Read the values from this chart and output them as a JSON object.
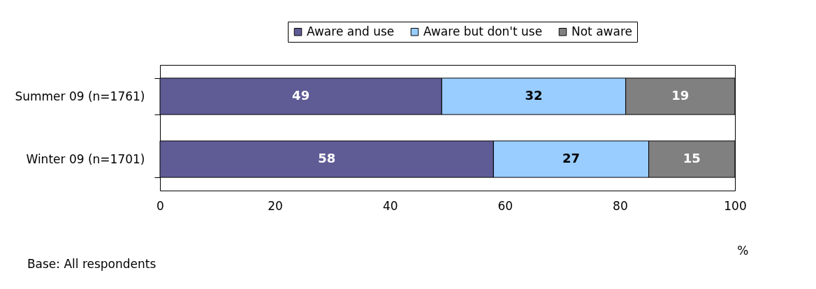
{
  "chart_data": {
    "type": "bar",
    "orientation": "horizontal",
    "stacked": true,
    "categories": [
      "Summer 09 (n=1761)",
      "Winter 09 (n=1701)"
    ],
    "series": [
      {
        "name": "Aware and use",
        "color": "#5f5b95",
        "values": [
          49,
          58
        ]
      },
      {
        "name": "Aware but don't use",
        "color": "#99ccff",
        "values": [
          32,
          27
        ]
      },
      {
        "name": "Not aware",
        "color": "#808080",
        "values": [
          19,
          15
        ]
      }
    ],
    "xlim": [
      0,
      100
    ],
    "xticks": [
      0,
      20,
      40,
      60,
      80,
      100
    ],
    "xlabel": "%",
    "data_labels": true,
    "legend": "top right",
    "grid": false,
    "annotations": [
      "Base: All respondents"
    ]
  }
}
